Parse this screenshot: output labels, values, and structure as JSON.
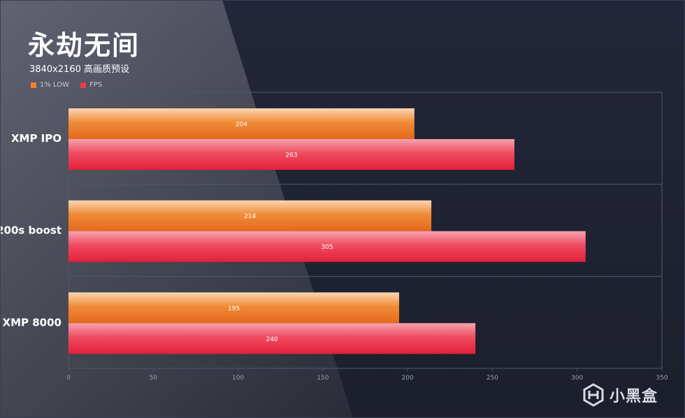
{
  "header": {
    "title": "永劫无间",
    "subtitle": "3840x2160 高画质预设"
  },
  "legend": [
    {
      "label": "1% LOW",
      "color": "#f07f2a"
    },
    {
      "label": "FPS",
      "color": "#ee3a50"
    }
  ],
  "brand": {
    "name": "小黑盒",
    "icon": "xiaoheihe-logo-icon"
  },
  "chart_data": {
    "type": "bar",
    "orientation": "horizontal",
    "categories": [
      "XMP IPO",
      "200s boost",
      "XMP 8000"
    ],
    "series": [
      {
        "name": "1% LOW",
        "values": [
          204,
          214,
          195
        ],
        "color": "#f07f2a"
      },
      {
        "name": "FPS",
        "values": [
          263,
          305,
          240
        ],
        "color": "#ee3a50"
      }
    ],
    "xlim": [
      0,
      350
    ],
    "xticks": [
      0,
      50,
      100,
      150,
      200,
      250,
      300,
      350
    ],
    "grid": "category-separators",
    "legend_position": "top-left",
    "data_labels": true
  }
}
